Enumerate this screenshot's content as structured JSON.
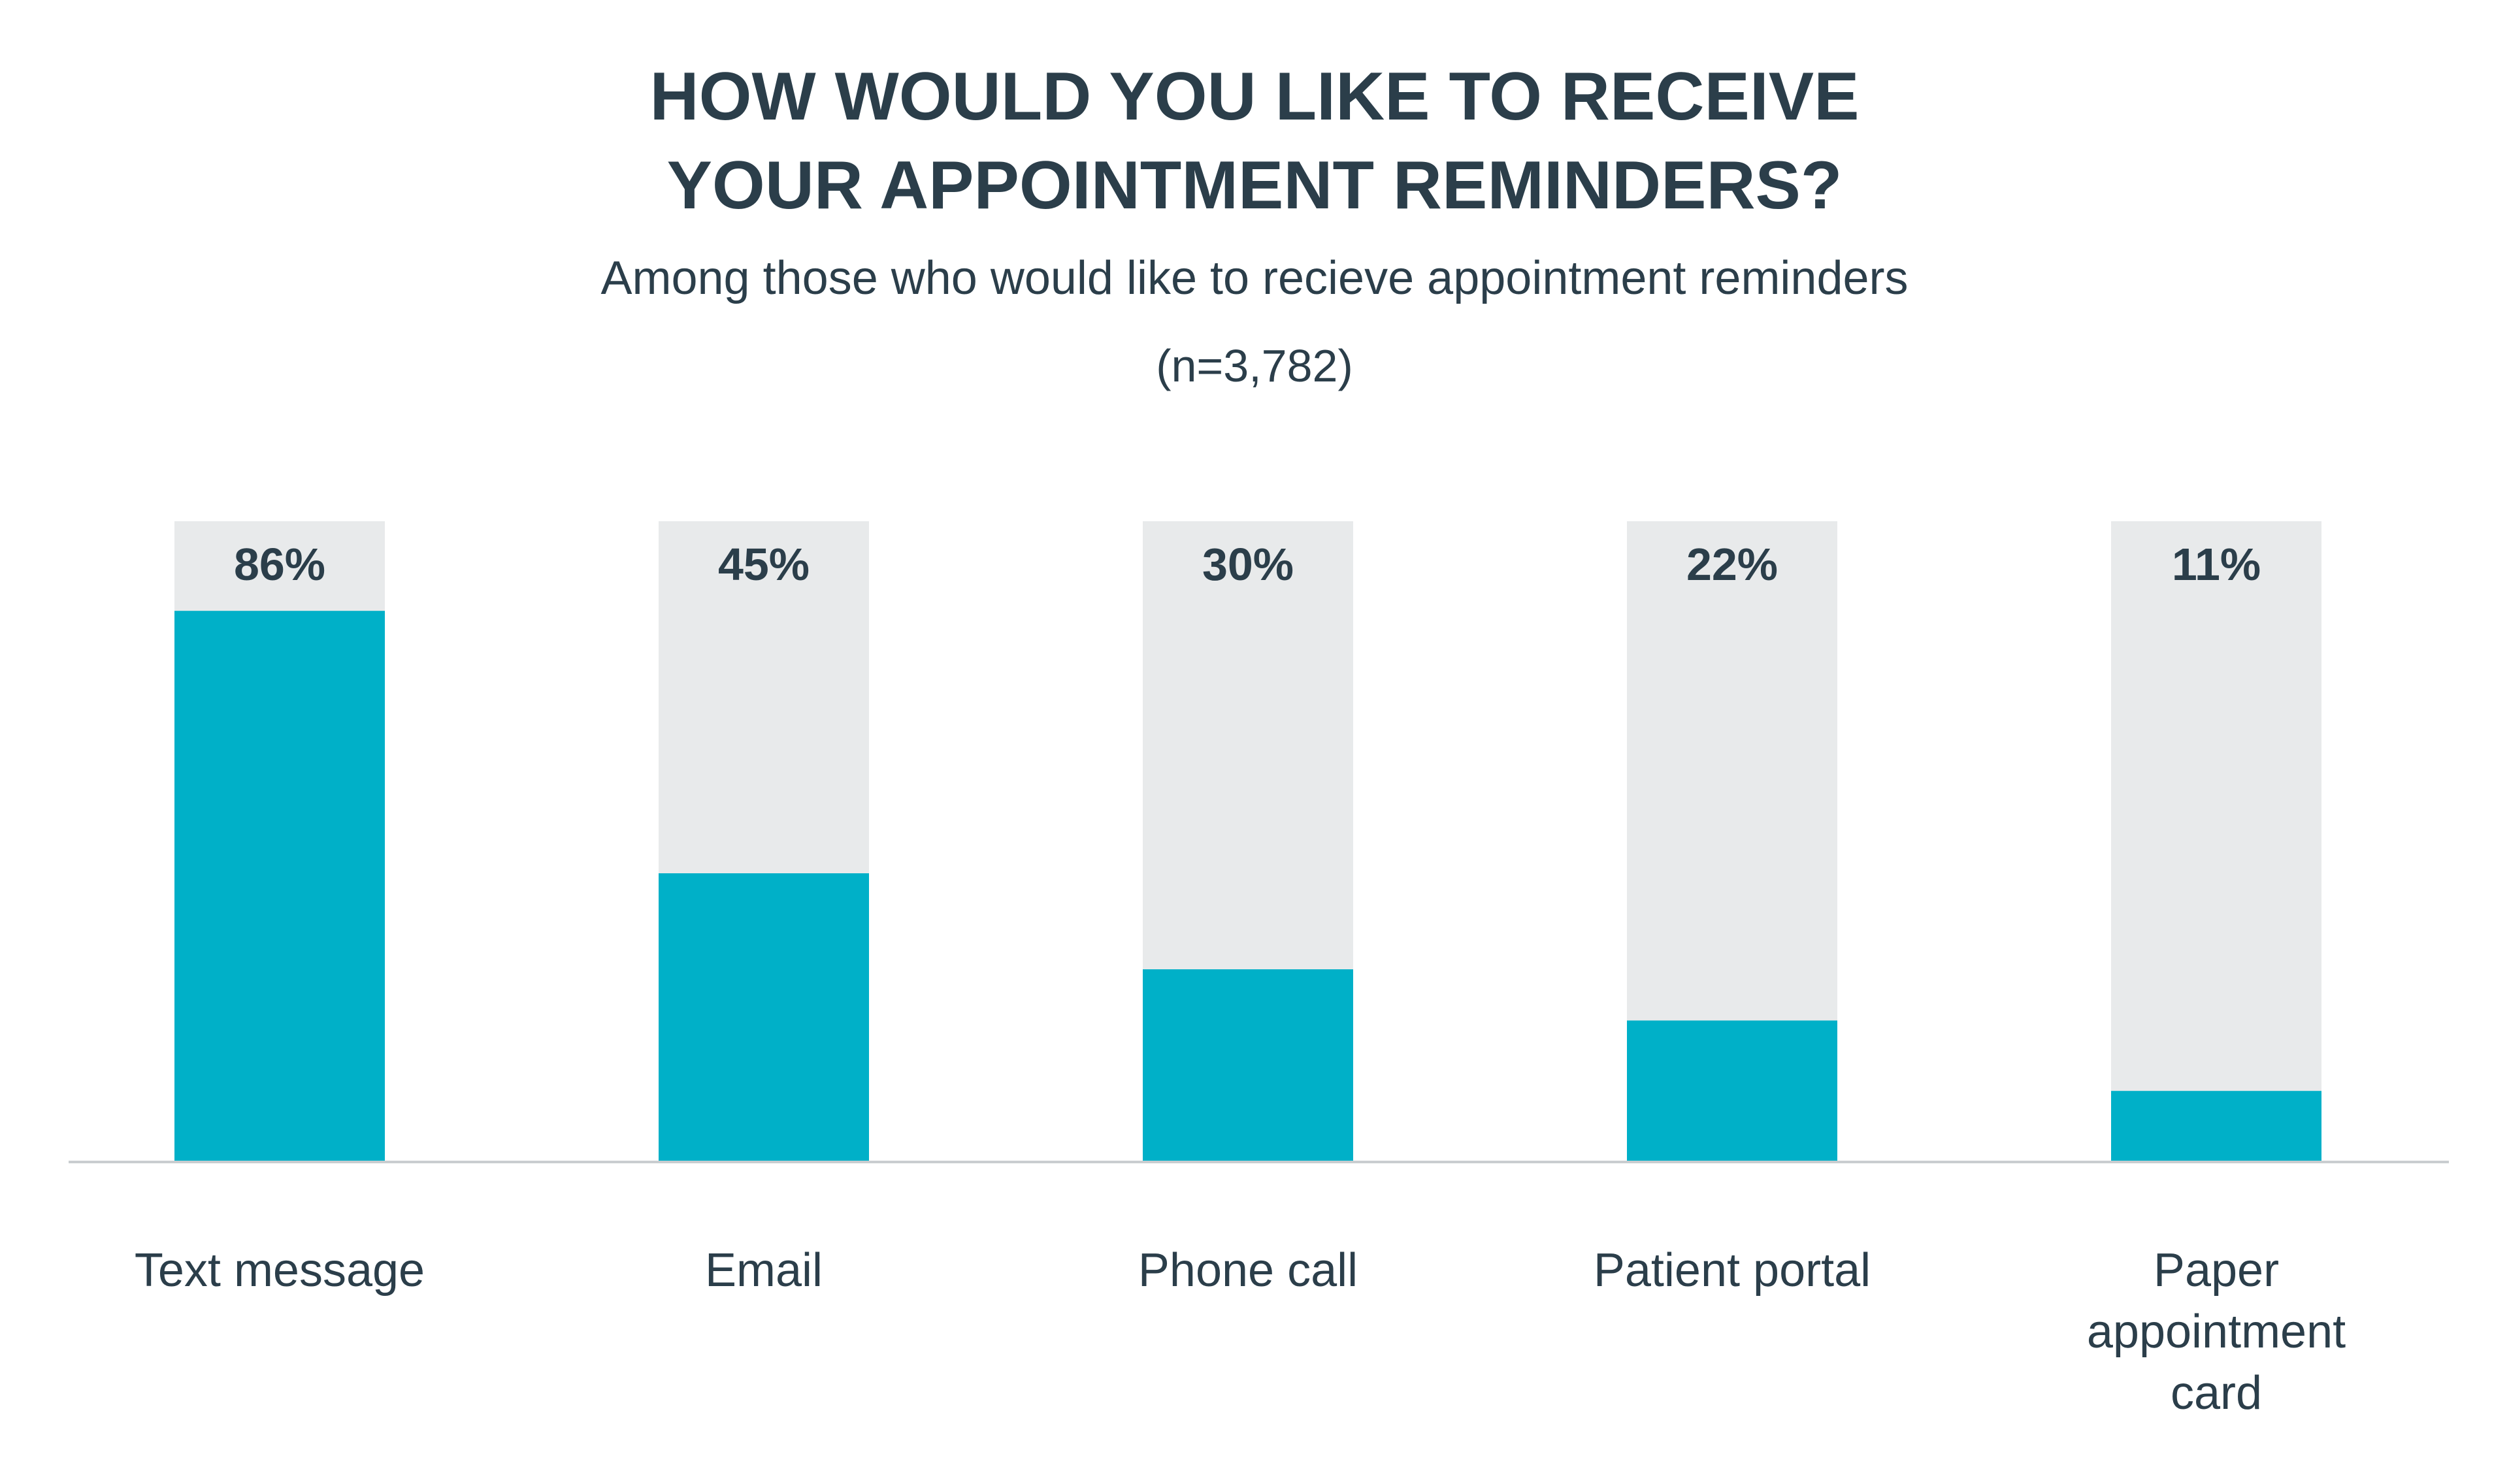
{
  "chart_data": {
    "type": "bar",
    "title_lines": [
      "HOW WOULD YOU LIKE TO RECEIVE",
      "YOUR APPOINTMENT REMINDERS?"
    ],
    "subtitle": "Among those who would like to recieve appointment reminders",
    "sample_size": "(n=3,782)",
    "categories": [
      "Text message",
      "Email",
      "Phone call",
      "Patient portal",
      "Paper appointment card"
    ],
    "category_label_lines": [
      [
        "Text message"
      ],
      [
        "Email"
      ],
      [
        "Phone call"
      ],
      [
        "Patient portal"
      ],
      [
        "Paper",
        "appointment",
        "card"
      ]
    ],
    "values": [
      86,
      45,
      30,
      22,
      11
    ],
    "value_labels": [
      "86%",
      "45%",
      "30%",
      "22%",
      "11%"
    ],
    "ylim": [
      0,
      100
    ],
    "grid": false,
    "legend": "none",
    "colors": {
      "bar": "#00b0c8",
      "track": "#e8eaeb",
      "text": "#2b3e4a",
      "baseline": "#c9cdd0"
    }
  }
}
